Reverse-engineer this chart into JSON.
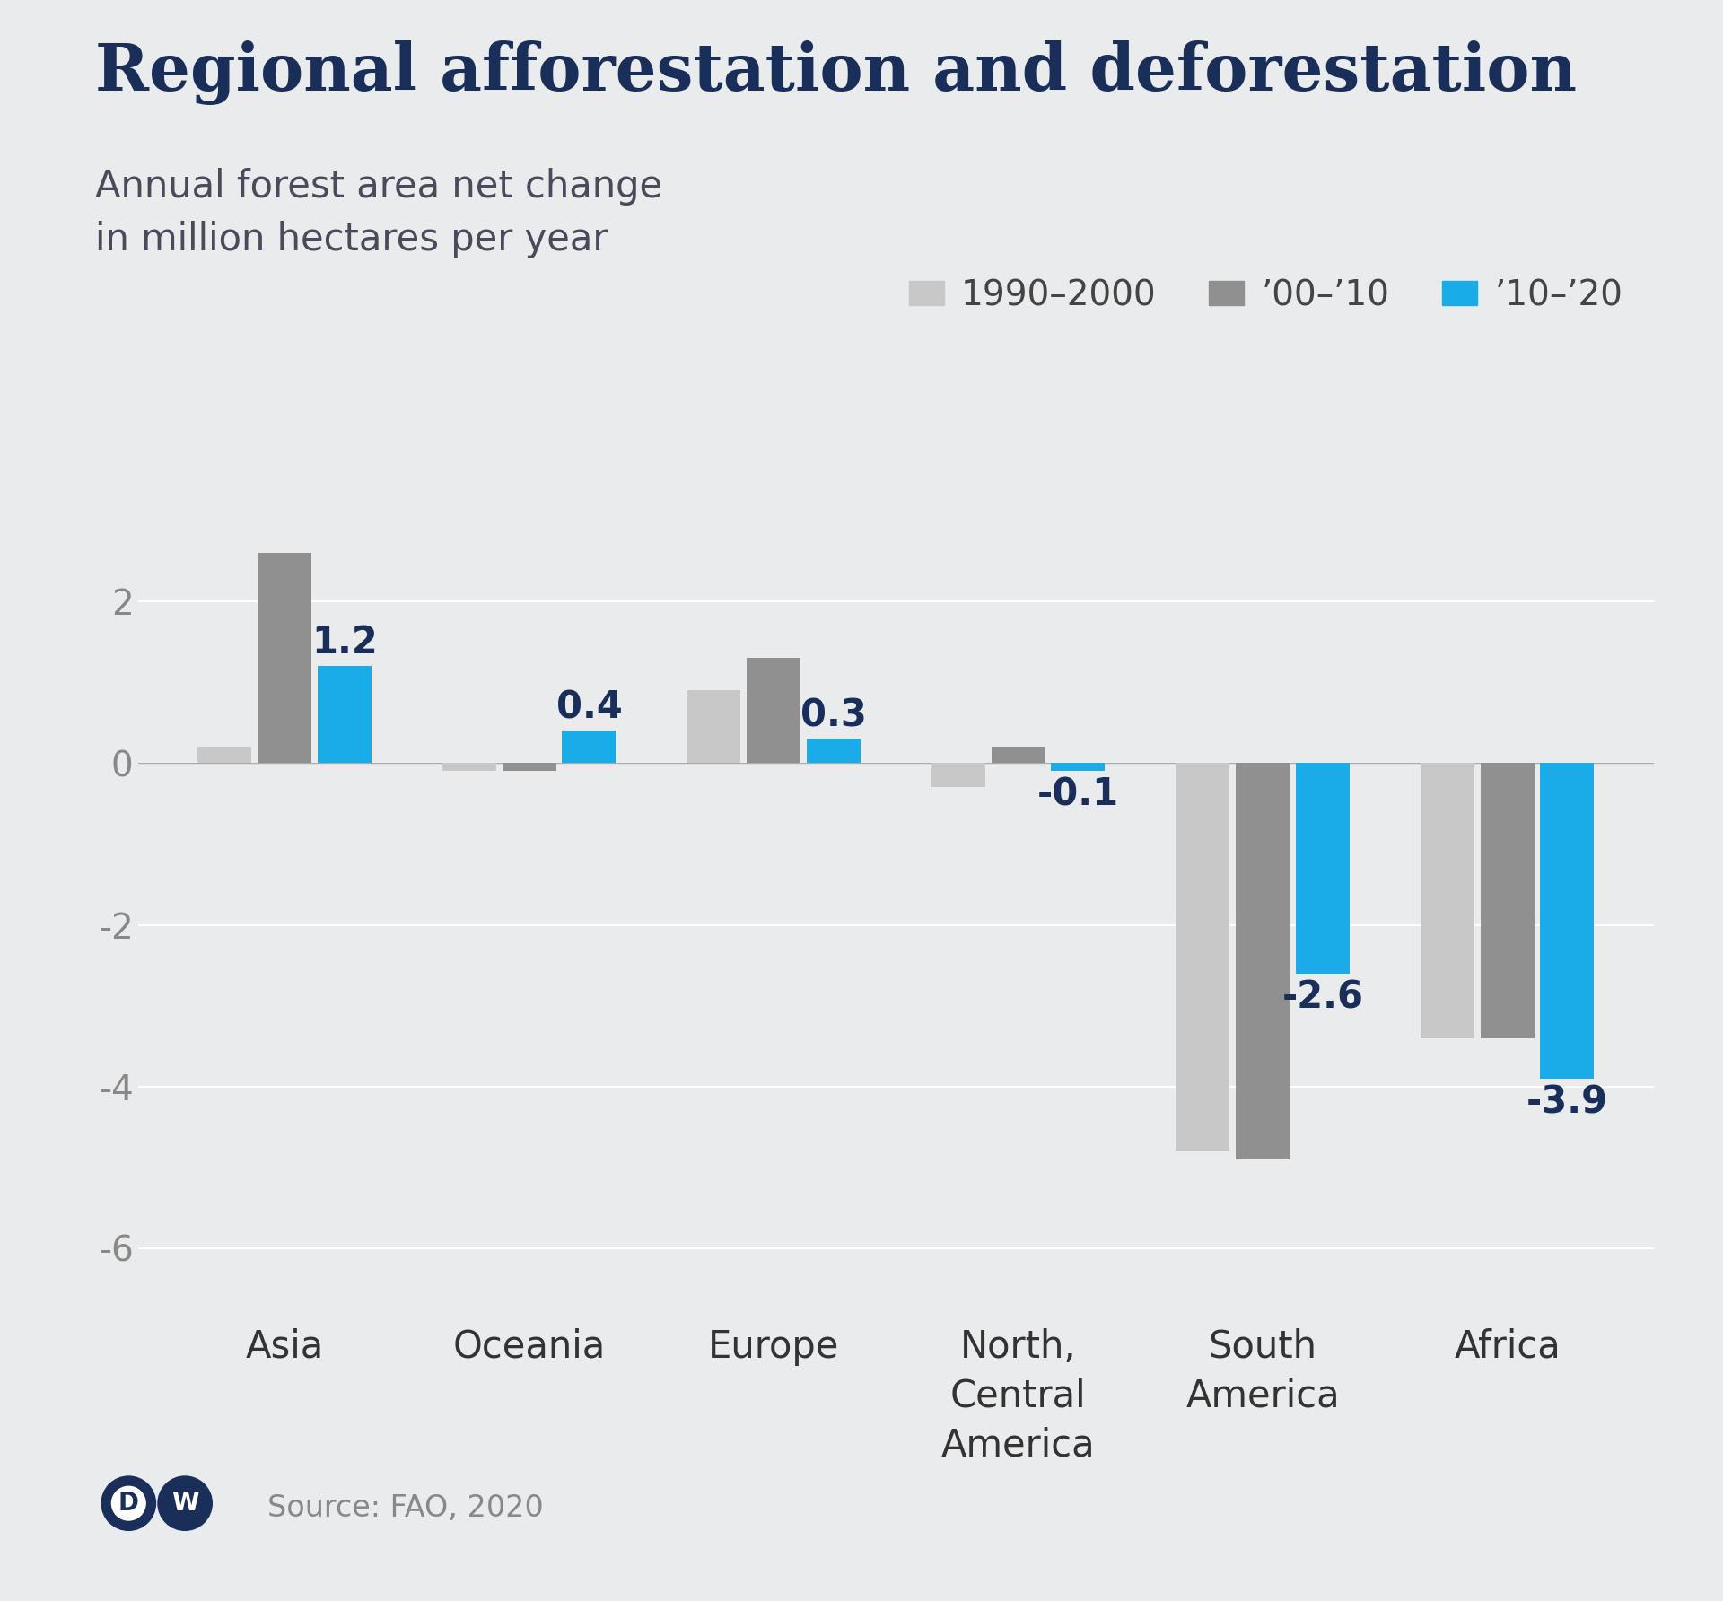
{
  "title": "Regional afforestation and deforestation",
  "subtitle_line1": "Annual forest area net change",
  "subtitle_line2": "in million hectares per year",
  "categories": [
    "Asia",
    "Oceania",
    "Europe",
    "North,\nCentral\nAmerica",
    "South\nAmerica",
    "Africa"
  ],
  "series": {
    "1990-2000": [
      0.2,
      -0.1,
      0.9,
      -0.3,
      -4.8,
      -3.4
    ],
    "00-10": [
      2.6,
      -0.1,
      1.3,
      0.2,
      -4.9,
      -3.4
    ],
    "10-20": [
      1.2,
      0.4,
      0.3,
      -0.1,
      -2.6,
      -3.9
    ]
  },
  "labels_10_20": [
    "1.2",
    "0.4",
    "0.3",
    "-0.1",
    "-2.6",
    "-3.9"
  ],
  "colors": {
    "1990-2000": "#c8c8c8",
    "00-10": "#909090",
    "10-20": "#1aace8"
  },
  "legend_labels": [
    "1990–2000",
    "’00–’10",
    "’10–’20"
  ],
  "ylim": [
    -6.8,
    3.5
  ],
  "yticks": [
    -6,
    -4,
    -2,
    0,
    2
  ],
  "background_color": "#eaebec",
  "plot_bg_color": "#eaebec",
  "title_color": "#1a2e5a",
  "subtitle_color": "#4a4a5a",
  "label_color": "#1a2e5a",
  "axis_color": "#888888",
  "source_text": "Source: FAO, 2020",
  "title_fontsize": 52,
  "subtitle_fontsize": 30,
  "label_fontsize": 30,
  "legend_fontsize": 28,
  "tick_fontsize": 28,
  "source_fontsize": 24,
  "dw_color": "#1a2e5a"
}
